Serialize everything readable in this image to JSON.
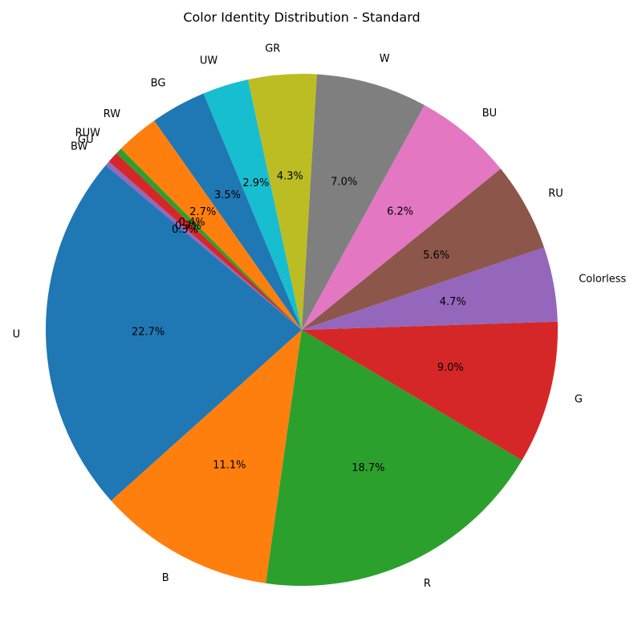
{
  "chart_data": {
    "type": "pie",
    "title": "Color Identity Distribution - Standard",
    "start_angle_deg": 140,
    "direction": "counterclockwise",
    "slices": [
      {
        "label": "U",
        "value": 22.7,
        "pct_label": "22.7%",
        "color": "#1f77b4"
      },
      {
        "label": "B",
        "value": 11.1,
        "pct_label": "11.1%",
        "color": "#ff7f0e"
      },
      {
        "label": "R",
        "value": 18.7,
        "pct_label": "18.7%",
        "color": "#2ca02c"
      },
      {
        "label": "G",
        "value": 9.0,
        "pct_label": "9.0%",
        "color": "#d62728"
      },
      {
        "label": "Colorless",
        "value": 4.7,
        "pct_label": "4.7%",
        "color": "#9467bd"
      },
      {
        "label": "RU",
        "value": 5.6,
        "pct_label": "5.6%",
        "color": "#8c564b"
      },
      {
        "label": "BU",
        "value": 6.2,
        "pct_label": "6.2%",
        "color": "#e377c2"
      },
      {
        "label": "W",
        "value": 7.0,
        "pct_label": "7.0%",
        "color": "#7f7f7f"
      },
      {
        "label": "GR",
        "value": 4.3,
        "pct_label": "4.3%",
        "color": "#bcbd22"
      },
      {
        "label": "UW",
        "value": 2.9,
        "pct_label": "2.9%",
        "color": "#17becf"
      },
      {
        "label": "BG",
        "value": 3.5,
        "pct_label": "3.5%",
        "color": "#1f77b4"
      },
      {
        "label": "RW",
        "value": 2.7,
        "pct_label": "2.7%",
        "color": "#ff7f0e"
      },
      {
        "label": "RUW",
        "value": 0.4,
        "pct_label": "0.4%",
        "color": "#2ca02c"
      },
      {
        "label": "GU",
        "value": 0.7,
        "pct_label": "0.7%",
        "color": "#d62728"
      },
      {
        "label": "BW",
        "value": 0.3,
        "pct_label": "0.3%",
        "color": "#9467bd"
      }
    ]
  }
}
